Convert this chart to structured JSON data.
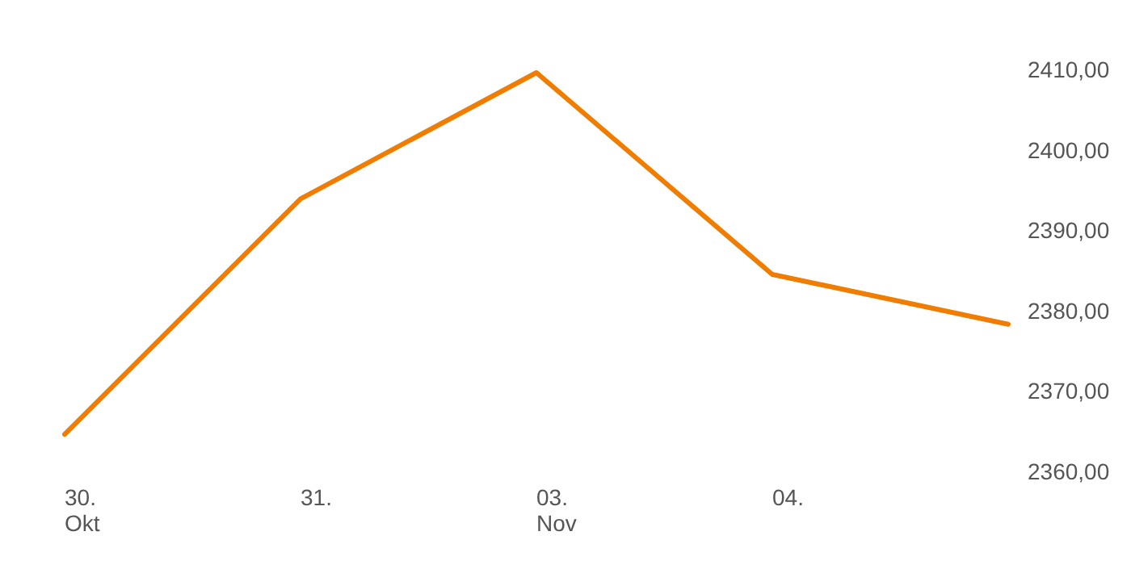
{
  "chart_data": {
    "type": "line",
    "categories": [
      "30.\nOkt",
      "31.",
      "03.\nNov",
      "04.",
      null
    ],
    "series": [
      {
        "color": "#f07c00",
        "values": [
          2364.6,
          2393.9,
          2409.6,
          2384.5,
          2378.3
        ]
      }
    ],
    "ylim": [
      2360,
      2410
    ],
    "yticks": [
      {
        "value": 2360,
        "label": "2360,00"
      },
      {
        "value": 2370,
        "label": "2370,00"
      },
      {
        "value": 2380,
        "label": "2380,00"
      },
      {
        "value": 2390,
        "label": "2390,00"
      },
      {
        "value": 2400,
        "label": "2400,00"
      },
      {
        "value": 2410,
        "label": "2410,00"
      }
    ],
    "grid": false,
    "marker": "none",
    "line_style": "solid"
  }
}
